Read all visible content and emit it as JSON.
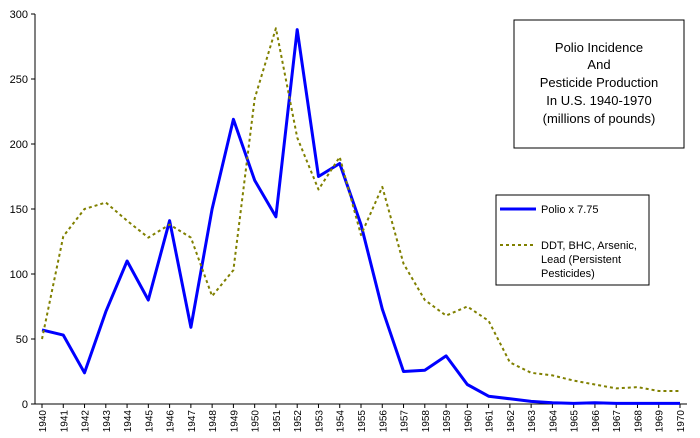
{
  "chart_data": {
    "type": "line",
    "title_lines": [
      "Polio Incidence",
      "And",
      "Pesticide Production",
      "In U.S. 1940-1970",
      "(millions of pounds)"
    ],
    "x": [
      "1940",
      "1941",
      "1942",
      "1943",
      "1944",
      "1945",
      "1946",
      "1947",
      "1948",
      "1949",
      "1950",
      "1951",
      "1952",
      "1953",
      "1954",
      "1955",
      "1956",
      "1957",
      "1958",
      "1959",
      "1960",
      "1961",
      "1962",
      "1963",
      "1964",
      "1965",
      "1966",
      "1967",
      "1968",
      "1969",
      "1970"
    ],
    "yticks": [
      0,
      50,
      100,
      150,
      200,
      250,
      300
    ],
    "ylim": [
      0,
      300
    ],
    "grid": false,
    "legend_position": "right",
    "series": [
      {
        "name": "Polio x 7.75",
        "color": "#0000ff",
        "style": "solid",
        "values": [
          57,
          53,
          24,
          71,
          110,
          80,
          141,
          59,
          150,
          219,
          172,
          144,
          288,
          175,
          185,
          138,
          73,
          25,
          26,
          37,
          15,
          6,
          4,
          2,
          1,
          0.5,
          1,
          0.5,
          0.5,
          0.5,
          0.5
        ]
      },
      {
        "name_lines": [
          "DDT, BHC, Arsenic,",
          "Lead (Persistent",
          "Pesticides)"
        ],
        "color": "#808000",
        "style": "dashed",
        "values": [
          50,
          129,
          150,
          155,
          141,
          128,
          138,
          128,
          83,
          103,
          235,
          289,
          205,
          165,
          190,
          130,
          167,
          108,
          80,
          68,
          75,
          64,
          32,
          24,
          22,
          18,
          15,
          12,
          13,
          10,
          10
        ]
      }
    ]
  }
}
